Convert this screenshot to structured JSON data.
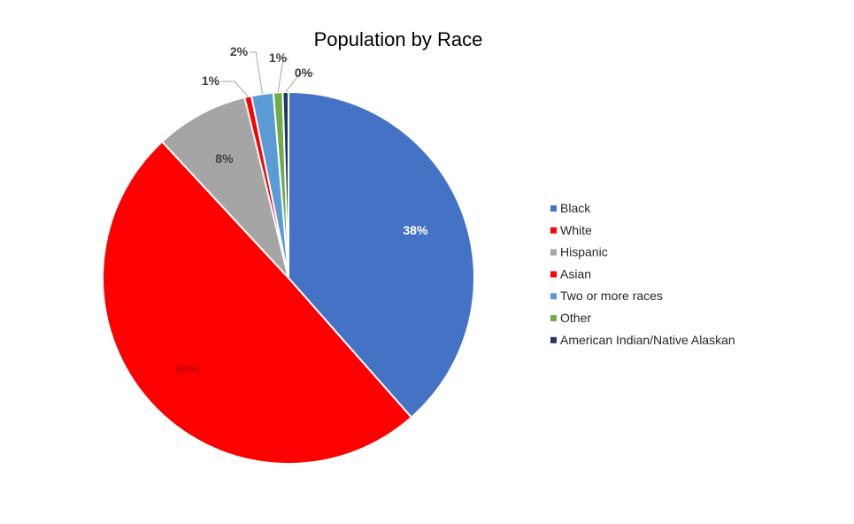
{
  "chart_data": {
    "type": "pie",
    "title": "Population by Race",
    "legend_position": "right",
    "slices": [
      {
        "label": "Black",
        "value": 38.5,
        "display": "38%",
        "color": "#4472C4",
        "label_placement": "inside",
        "label_color": "#ffffff"
      },
      {
        "label": "White",
        "value": 49.6,
        "display": "50%",
        "color": "#FF0000",
        "label_placement": "inside",
        "label_color": "#C00000"
      },
      {
        "label": "Hispanic",
        "value": 8.1,
        "display": "8%",
        "color": "#A5A5A5",
        "label_placement": "inside",
        "label_color": "#404040"
      },
      {
        "label": "Asian",
        "value": 0.6,
        "display": "1%",
        "color": "#FF0000",
        "label_placement": "outside",
        "label_color": "#404040"
      },
      {
        "label": "Two or more races",
        "value": 1.9,
        "display": "2%",
        "color": "#5B9BD5",
        "label_placement": "outside",
        "label_color": "#404040"
      },
      {
        "label": "Other",
        "value": 0.8,
        "display": "1%",
        "color": "#70AD47",
        "label_placement": "outside",
        "label_color": "#404040"
      },
      {
        "label": "American Indian/Native Alaskan",
        "value": 0.5,
        "display": "0%",
        "color": "#1F3864",
        "label_placement": "outside",
        "label_color": "#404040"
      }
    ]
  }
}
